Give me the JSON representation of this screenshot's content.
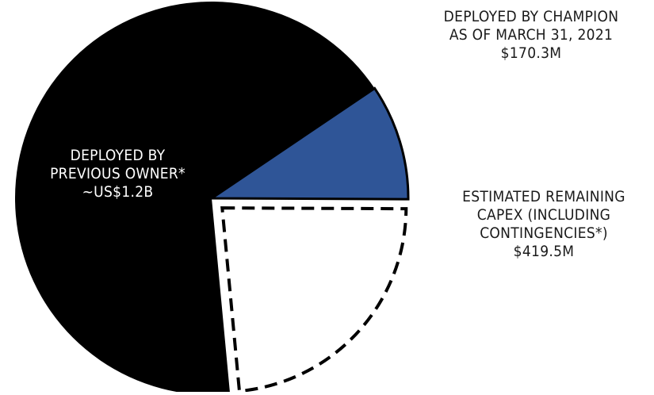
{
  "chart_data": {
    "type": "pie",
    "slices": [
      {
        "id": "previous",
        "label_lines": [
          "DEPLOYED BY",
          "PREVIOUS OWNER*",
          "~US$1.2B"
        ],
        "value": 1200,
        "color": "#000000",
        "style": "solid"
      },
      {
        "id": "champion",
        "label_lines": [
          "DEPLOYED BY CHAMPION",
          "AS OF MARCH 31, 2021",
          "$170.3M"
        ],
        "value": 170.3,
        "color": "#2f5597",
        "style": "solid"
      },
      {
        "id": "remaining",
        "label_lines": [
          "ESTIMATED REMAINING",
          "CAPEX (INCLUDING",
          "CONTINGENCIES*)",
          "$419.5M"
        ],
        "value": 419.5,
        "color": "#ffffff",
        "style": "dashed",
        "exploded": true
      }
    ],
    "unit": "US$ millions"
  }
}
